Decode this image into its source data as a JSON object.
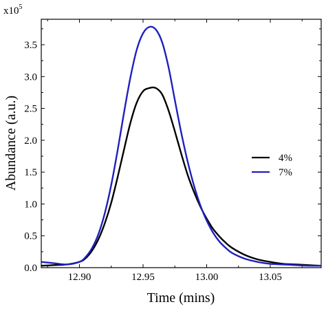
{
  "chart_data": {
    "type": "line",
    "title": "",
    "xlabel": "Time (mins)",
    "ylabel": "Abundance (a.u.)",
    "xlim": [
      12.87,
      13.09
    ],
    "ylim": [
      0.0,
      3.9
    ],
    "y_multiplier_label": {
      "base": "x10",
      "exp": "5"
    },
    "xticks": [
      12.9,
      12.95,
      13.0,
      13.05
    ],
    "xtick_labels": [
      "12.90",
      "12.95",
      "13.00",
      "13.05"
    ],
    "yticks": [
      0.0,
      0.5,
      1.0,
      1.5,
      2.0,
      2.5,
      3.0,
      3.5
    ],
    "ytick_labels": [
      "0.0",
      "0.5",
      "1.0",
      "1.5",
      "2.0",
      "2.5",
      "3.0",
      "3.5"
    ],
    "grid": false,
    "legend_position": "right",
    "series": [
      {
        "name": "4%",
        "color": "#000000",
        "x": [
          12.87,
          12.88,
          12.89,
          12.9,
          12.905,
          12.91,
          12.915,
          12.92,
          12.925,
          12.93,
          12.935,
          12.94,
          12.945,
          12.95,
          12.955,
          12.96,
          12.965,
          12.97,
          12.975,
          12.98,
          12.985,
          12.99,
          12.995,
          13.0,
          13.005,
          13.01,
          13.015,
          13.02,
          13.03,
          13.04,
          13.05,
          13.06,
          13.07,
          13.08,
          13.09
        ],
        "y": [
          0.03,
          0.04,
          0.05,
          0.09,
          0.15,
          0.27,
          0.45,
          0.7,
          1.02,
          1.42,
          1.85,
          2.27,
          2.59,
          2.77,
          2.82,
          2.82,
          2.72,
          2.47,
          2.14,
          1.79,
          1.46,
          1.19,
          0.96,
          0.77,
          0.61,
          0.49,
          0.39,
          0.31,
          0.2,
          0.13,
          0.09,
          0.06,
          0.05,
          0.04,
          0.03
        ]
      },
      {
        "name": "7%",
        "color": "#1f1fbf",
        "x": [
          12.87,
          12.88,
          12.89,
          12.9,
          12.905,
          12.91,
          12.915,
          12.92,
          12.925,
          12.93,
          12.935,
          12.94,
          12.945,
          12.95,
          12.955,
          12.96,
          12.965,
          12.97,
          12.975,
          12.98,
          12.985,
          12.99,
          12.995,
          13.0,
          13.005,
          13.01,
          13.015,
          13.02,
          13.03,
          13.04,
          13.05,
          13.06,
          13.07,
          13.08,
          13.09
        ],
        "y": [
          0.09,
          0.07,
          0.05,
          0.09,
          0.17,
          0.31,
          0.53,
          0.86,
          1.3,
          1.84,
          2.43,
          2.98,
          3.42,
          3.68,
          3.78,
          3.74,
          3.54,
          3.15,
          2.63,
          2.12,
          1.67,
          1.29,
          0.98,
          0.74,
          0.55,
          0.41,
          0.31,
          0.23,
          0.14,
          0.09,
          0.06,
          0.05,
          0.04,
          0.03,
          0.03
        ]
      }
    ]
  }
}
